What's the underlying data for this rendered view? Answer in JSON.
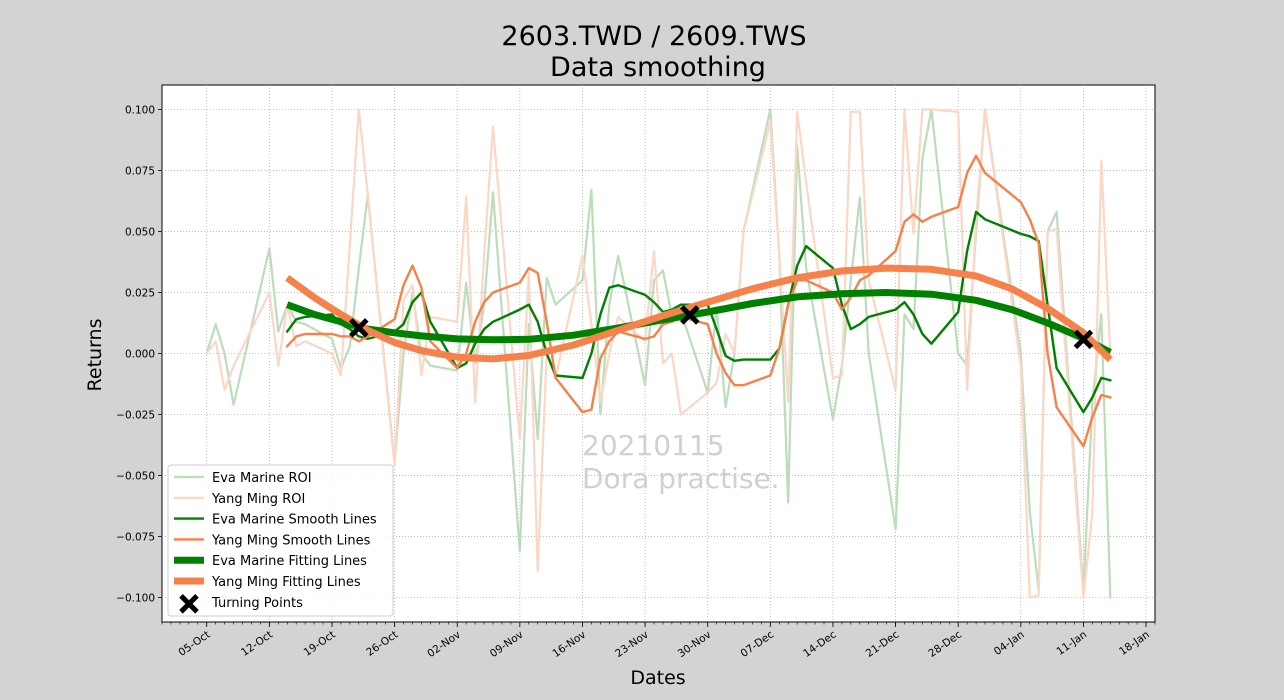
{
  "chart_data": {
    "type": "line",
    "title": "2603.TWD / 2609.TWS",
    "subtitle": "Data smoothing",
    "xlabel": "Dates",
    "ylabel": "Returns",
    "ylim": [
      -0.11,
      0.11
    ],
    "xlim": [
      "2020-09-30",
      "2021-01-19"
    ],
    "grid": true,
    "legend_position": "lower-left",
    "watermark": [
      "20210115",
      "Dora practise."
    ],
    "x_ticks": [
      "05-Oct",
      "12-Oct",
      "19-Oct",
      "26-Oct",
      "02-Nov",
      "09-Nov",
      "16-Nov",
      "23-Nov",
      "30-Nov",
      "07-Dec",
      "14-Dec",
      "21-Dec",
      "28-Dec",
      "04-Jan",
      "11-Jan",
      "18-Jan"
    ],
    "y_ticks": [
      "0.100",
      "0.075",
      "0.050",
      "0.025",
      "0.000",
      "−0.025",
      "−0.050",
      "−0.075",
      "−0.100"
    ],
    "series": [
      {
        "name": "Eva Marine ROI",
        "color": "#bcdcbc",
        "style": "thin",
        "x": [
          "2020-10-05",
          "2020-10-06",
          "2020-10-07",
          "2020-10-08",
          "2020-10-12",
          "2020-10-13",
          "2020-10-14",
          "2020-10-15",
          "2020-10-16",
          "2020-10-19",
          "2020-10-20",
          "2020-10-21",
          "2020-10-22",
          "2020-10-23",
          "2020-10-26",
          "2020-10-27",
          "2020-10-28",
          "2020-10-29",
          "2020-10-30",
          "2020-11-02",
          "2020-11-03",
          "2020-11-04",
          "2020-11-05",
          "2020-11-06",
          "2020-11-09",
          "2020-11-10",
          "2020-11-11",
          "2020-11-12",
          "2020-11-13",
          "2020-11-16",
          "2020-11-17",
          "2020-11-18",
          "2020-11-19",
          "2020-11-20",
          "2020-11-23",
          "2020-11-24",
          "2020-11-25",
          "2020-11-26",
          "2020-11-27",
          "2020-11-30",
          "2020-12-01",
          "2020-12-02",
          "2020-12-03",
          "2020-12-04",
          "2020-12-07",
          "2020-12-08",
          "2020-12-09",
          "2020-12-10",
          "2020-12-11",
          "2020-12-14",
          "2020-12-15",
          "2020-12-16",
          "2020-12-17",
          "2020-12-18",
          "2020-12-21",
          "2020-12-22",
          "2020-12-23",
          "2020-12-24",
          "2020-12-25",
          "2020-12-28",
          "2020-12-29",
          "2020-12-30",
          "2020-12-31",
          "2021-01-04",
          "2021-01-05",
          "2021-01-06",
          "2021-01-07",
          "2021-01-08",
          "2021-01-11",
          "2021-01-12",
          "2021-01-13",
          "2021-01-14"
        ],
        "values": [
          0.0,
          0.012,
          0.0,
          -0.021,
          0.043,
          0.009,
          0.02,
          0.013,
          0.012,
          0.006,
          -0.006,
          0.003,
          0.035,
          0.065,
          -0.045,
          0.0,
          0.025,
          0.0,
          -0.005,
          -0.007,
          0.029,
          -0.004,
          0.02,
          0.066,
          -0.081,
          0.012,
          -0.035,
          0.031,
          0.02,
          0.03,
          0.067,
          -0.025,
          0.02,
          0.04,
          -0.013,
          0.03,
          0.034,
          0.015,
          0.017,
          -0.016,
          0.019,
          -0.022,
          0.0,
          0.05,
          0.1,
          0.04,
          -0.061,
          0.085,
          0.035,
          -0.027,
          -0.005,
          0.03,
          0.064,
          0.0,
          -0.072,
          0.016,
          0.01,
          0.08,
          0.1,
          0.0,
          -0.005,
          0.05,
          0.1,
          0.0,
          -0.065,
          -0.097,
          0.05,
          0.058,
          -0.097,
          -0.02,
          0.016,
          -0.1
        ]
      },
      {
        "name": "Yang Ming ROI",
        "color": "#fbd7c6",
        "style": "thin",
        "x": [
          "2020-10-05",
          "2020-10-06",
          "2020-10-07",
          "2020-10-08",
          "2020-10-12",
          "2020-10-13",
          "2020-10-14",
          "2020-10-15",
          "2020-10-16",
          "2020-10-19",
          "2020-10-20",
          "2020-10-21",
          "2020-10-22",
          "2020-10-23",
          "2020-10-26",
          "2020-10-27",
          "2020-10-28",
          "2020-10-29",
          "2020-10-30",
          "2020-11-02",
          "2020-11-03",
          "2020-11-04",
          "2020-11-05",
          "2020-11-06",
          "2020-11-09",
          "2020-11-10",
          "2020-11-11",
          "2020-11-12",
          "2020-11-13",
          "2020-11-16",
          "2020-11-17",
          "2020-11-18",
          "2020-11-19",
          "2020-11-20",
          "2020-11-23",
          "2020-11-24",
          "2020-11-25",
          "2020-11-26",
          "2020-11-27",
          "2020-11-30",
          "2020-12-01",
          "2020-12-02",
          "2020-12-03",
          "2020-12-04",
          "2020-12-07",
          "2020-12-08",
          "2020-12-09",
          "2020-12-10",
          "2020-12-11",
          "2020-12-14",
          "2020-12-15",
          "2020-12-16",
          "2020-12-17",
          "2020-12-18",
          "2020-12-21",
          "2020-12-22",
          "2020-12-23",
          "2020-12-24",
          "2020-12-25",
          "2020-12-28",
          "2020-12-29",
          "2020-12-30",
          "2020-12-31",
          "2021-01-04",
          "2021-01-05",
          "2021-01-06",
          "2021-01-07",
          "2021-01-08",
          "2021-01-11",
          "2021-01-12",
          "2021-01-13",
          "2021-01-14"
        ],
        "values": [
          0.0,
          0.005,
          -0.015,
          -0.005,
          0.025,
          -0.005,
          0.02,
          0.003,
          0.005,
          0.0,
          -0.009,
          0.045,
          0.1,
          0.065,
          -0.046,
          0.022,
          0.028,
          -0.009,
          0.015,
          0.013,
          0.064,
          -0.02,
          0.04,
          0.093,
          -0.035,
          0.033,
          -0.089,
          0.0,
          -0.01,
          0.04,
          0.012,
          -0.02,
          0.0,
          0.015,
          0.005,
          0.042,
          -0.004,
          0.0,
          -0.025,
          -0.016,
          -0.012,
          0.008,
          0.0,
          0.05,
          0.095,
          0.04,
          -0.02,
          0.099,
          0.07,
          -0.01,
          -0.009,
          0.099,
          0.099,
          0.03,
          -0.015,
          0.1,
          0.049,
          0.1,
          0.1,
          0.099,
          -0.015,
          0.055,
          0.1,
          -0.005,
          -0.1,
          -0.099,
          0.05,
          0.051,
          -0.1,
          -0.065,
          0.079,
          0.0
        ]
      },
      {
        "name": "Eva Marine Smooth Lines",
        "color": "#008000",
        "style": "medium",
        "x": [
          "2020-10-14",
          "2020-10-15",
          "2020-10-16",
          "2020-10-19",
          "2020-10-20",
          "2020-10-21",
          "2020-10-22",
          "2020-10-23",
          "2020-10-26",
          "2020-10-27",
          "2020-10-28",
          "2020-10-29",
          "2020-10-30",
          "2020-11-02",
          "2020-11-03",
          "2020-11-04",
          "2020-11-05",
          "2020-11-06",
          "2020-11-09",
          "2020-11-10",
          "2020-11-11",
          "2020-11-12",
          "2020-11-13",
          "2020-11-16",
          "2020-11-17",
          "2020-11-18",
          "2020-11-19",
          "2020-11-20",
          "2020-11-23",
          "2020-11-24",
          "2020-11-25",
          "2020-11-26",
          "2020-11-27",
          "2020-11-30",
          "2020-12-01",
          "2020-12-02",
          "2020-12-03",
          "2020-12-04",
          "2020-12-07",
          "2020-12-08",
          "2020-12-09",
          "2020-12-10",
          "2020-12-11",
          "2020-12-14",
          "2020-12-15",
          "2020-12-16",
          "2020-12-17",
          "2020-12-18",
          "2020-12-21",
          "2020-12-22",
          "2020-12-23",
          "2020-12-24",
          "2020-12-25",
          "2020-12-28",
          "2020-12-29",
          "2020-12-30",
          "2020-12-31",
          "2021-01-04",
          "2021-01-05",
          "2021-01-06",
          "2021-01-07",
          "2021-01-08",
          "2021-01-11",
          "2021-01-12",
          "2021-01-13",
          "2021-01-14"
        ],
        "values": [
          0.009,
          0.014,
          0.015,
          0.016,
          0.012,
          0.01,
          0.007,
          0.006,
          0.009,
          0.012,
          0.021,
          0.025,
          0.013,
          -0.006,
          -0.004,
          0.004,
          0.01,
          0.013,
          0.018,
          0.02,
          0.013,
          0.0,
          -0.009,
          -0.01,
          0.0,
          0.016,
          0.027,
          0.028,
          0.024,
          0.021,
          0.017,
          0.018,
          0.02,
          0.02,
          0.01,
          -0.001,
          -0.003,
          -0.0025,
          -0.0025,
          0.002,
          0.02,
          0.036,
          0.044,
          0.035,
          0.02,
          0.01,
          0.012,
          0.015,
          0.018,
          0.021,
          0.016,
          0.008,
          0.004,
          0.017,
          0.042,
          0.058,
          0.055,
          0.049,
          0.048,
          0.046,
          0.02,
          -0.006,
          -0.024,
          -0.018,
          -0.01,
          -0.011
        ]
      },
      {
        "name": "Yang Ming Smooth Lines",
        "color": "#f5824a",
        "style": "medium",
        "x": [
          "2020-10-14",
          "2020-10-15",
          "2020-10-16",
          "2020-10-19",
          "2020-10-20",
          "2020-10-21",
          "2020-10-22",
          "2020-10-23",
          "2020-10-26",
          "2020-10-27",
          "2020-10-28",
          "2020-10-29",
          "2020-10-30",
          "2020-11-02",
          "2020-11-03",
          "2020-11-04",
          "2020-11-05",
          "2020-11-06",
          "2020-11-09",
          "2020-11-10",
          "2020-11-11",
          "2020-11-12",
          "2020-11-13",
          "2020-11-16",
          "2020-11-17",
          "2020-11-18",
          "2020-11-19",
          "2020-11-20",
          "2020-11-23",
          "2020-11-24",
          "2020-11-25",
          "2020-11-26",
          "2020-11-27",
          "2020-11-30",
          "2020-12-01",
          "2020-12-02",
          "2020-12-03",
          "2020-12-04",
          "2020-12-07",
          "2020-12-08",
          "2020-12-09",
          "2020-12-10",
          "2020-12-11",
          "2020-12-14",
          "2020-12-15",
          "2020-12-16",
          "2020-12-17",
          "2020-12-18",
          "2020-12-21",
          "2020-12-22",
          "2020-12-23",
          "2020-12-24",
          "2020-12-25",
          "2020-12-28",
          "2020-12-29",
          "2020-12-30",
          "2020-12-31",
          "2021-01-04",
          "2021-01-05",
          "2021-01-06",
          "2021-01-07",
          "2021-01-08",
          "2021-01-11",
          "2021-01-12",
          "2021-01-13",
          "2021-01-14"
        ],
        "values": [
          0.003,
          0.007,
          0.008,
          0.008,
          0.007,
          0.007,
          0.005,
          0.007,
          0.014,
          0.028,
          0.036,
          0.027,
          0.005,
          -0.006,
          0.0,
          0.013,
          0.021,
          0.025,
          0.029,
          0.035,
          0.033,
          0.013,
          -0.01,
          -0.024,
          -0.023,
          -0.002,
          0.005,
          0.009,
          0.006,
          0.007,
          0.012,
          0.013,
          0.015,
          0.012,
          0.0,
          -0.008,
          -0.013,
          -0.013,
          -0.009,
          0.002,
          0.02,
          0.03,
          0.03,
          0.025,
          0.018,
          0.023,
          0.03,
          0.032,
          0.042,
          0.054,
          0.057,
          0.054,
          0.056,
          0.06,
          0.074,
          0.081,
          0.074,
          0.062,
          0.055,
          0.045,
          0.0,
          -0.022,
          -0.038,
          -0.026,
          -0.017,
          -0.018
        ]
      },
      {
        "name": "Eva Marine Fitting Lines",
        "color": "#008000",
        "style": "thick",
        "x": [
          "2020-10-14",
          "2020-10-17",
          "2020-10-20",
          "2020-10-23",
          "2020-10-26",
          "2020-10-29",
          "2020-11-02",
          "2020-11-06",
          "2020-11-10",
          "2020-11-15",
          "2020-11-20",
          "2020-11-25",
          "2020-11-30",
          "2020-12-05",
          "2020-12-10",
          "2020-12-15",
          "2020-12-20",
          "2020-12-25",
          "2020-12-30",
          "2021-01-03",
          "2021-01-07",
          "2021-01-11",
          "2021-01-14"
        ],
        "values": [
          0.02,
          0.016,
          0.013,
          0.01,
          0.0085,
          0.0072,
          0.006,
          0.0056,
          0.0058,
          0.0075,
          0.0105,
          0.0138,
          0.017,
          0.0205,
          0.0232,
          0.0245,
          0.025,
          0.0243,
          0.0218,
          0.018,
          0.0125,
          0.0062,
          0.0005
        ]
      },
      {
        "name": "Yang Ming Fitting Lines",
        "color": "#f5824a",
        "style": "thick",
        "x": [
          "2020-10-14",
          "2020-10-17",
          "2020-10-20",
          "2020-10-23",
          "2020-10-26",
          "2020-10-29",
          "2020-11-02",
          "2020-11-06",
          "2020-11-10",
          "2020-11-15",
          "2020-11-20",
          "2020-11-25",
          "2020-11-30",
          "2020-12-05",
          "2020-12-10",
          "2020-12-15",
          "2020-12-20",
          "2020-12-25",
          "2020-12-30",
          "2021-01-03",
          "2021-01-07",
          "2021-01-11",
          "2021-01-14"
        ],
        "values": [
          0.031,
          0.023,
          0.016,
          0.0095,
          0.0045,
          0.0012,
          -0.0015,
          -0.0022,
          -0.0008,
          0.0035,
          0.0095,
          0.0155,
          0.021,
          0.0265,
          0.031,
          0.0338,
          0.035,
          0.0345,
          0.0318,
          0.0265,
          0.0185,
          0.0085,
          -0.0025
        ]
      }
    ],
    "turning_points": {
      "name": "Turning Points",
      "marker": "X",
      "color": "#000000",
      "x": [
        "2020-10-22",
        "2020-11-28",
        "2021-01-11"
      ],
      "values": [
        0.0105,
        0.0158,
        0.0058
      ]
    }
  }
}
